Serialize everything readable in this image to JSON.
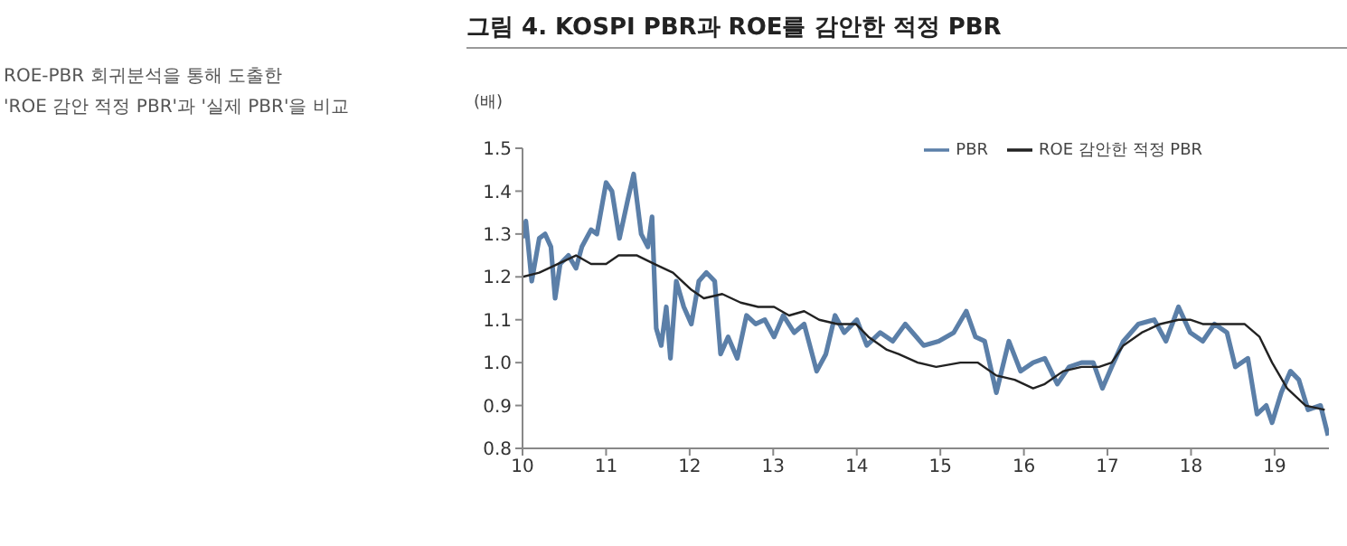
{
  "chart_data": {
    "type": "line",
    "title": "그림 4. KOSPI PBR과 ROE를 감안한 적정 PBR",
    "ylabel": "(배)",
    "annotations": [
      "ROE-PBR 회귀분석을 통해 도출한",
      "'ROE 감안 적정 PBR'과 '실제 PBR'을 비교"
    ],
    "xlim": [
      10,
      19.65
    ],
    "xticks": [
      10,
      11,
      12,
      13,
      14,
      15,
      16,
      17,
      18,
      19
    ],
    "ylim": [
      0.8,
      1.5
    ],
    "yticks": [
      {
        "value": 0.8,
        "label": "0.8"
      },
      {
        "value": 0.9,
        "label": "0.9"
      },
      {
        "value": 1.0,
        "label": "1.0"
      },
      {
        "value": 1.1,
        "label": "1.1"
      },
      {
        "value": 1.2,
        "label": "1.2"
      },
      {
        "value": 1.3,
        "label": "1.3"
      },
      {
        "value": 1.4,
        "label": "1.4"
      },
      {
        "value": 1.5,
        "label": "1.5"
      }
    ],
    "grid": false,
    "legend": "top right",
    "marker": "none",
    "series": [
      {
        "name": "PBR",
        "color": "#5b7fa8",
        "x": [
          10.0,
          10.04,
          10.11,
          10.2,
          10.27,
          10.34,
          10.39,
          10.45,
          10.55,
          10.64,
          10.71,
          10.82,
          10.89,
          11.0,
          11.07,
          11.16,
          11.26,
          11.33,
          11.42,
          11.5,
          11.55,
          11.6,
          11.66,
          11.72,
          11.77,
          11.84,
          11.93,
          12.02,
          12.11,
          12.2,
          12.3,
          12.37,
          12.46,
          12.57,
          12.68,
          12.79,
          12.9,
          13.01,
          13.12,
          13.25,
          13.37,
          13.52,
          13.63,
          13.74,
          13.85,
          14.0,
          14.12,
          14.28,
          14.43,
          14.58,
          14.8,
          14.98,
          15.16,
          15.31,
          15.42,
          15.53,
          15.67,
          15.82,
          15.96,
          16.11,
          16.25,
          16.4,
          16.54,
          16.69,
          16.83,
          16.94,
          17.05,
          17.19,
          17.37,
          17.56,
          17.7,
          17.85,
          17.99,
          18.14,
          18.28,
          18.43,
          18.53,
          18.68,
          18.79,
          18.9,
          18.97,
          19.08,
          19.19,
          19.29,
          19.4,
          19.55,
          19.64
        ],
        "values": [
          1.29,
          1.33,
          1.19,
          1.29,
          1.3,
          1.27,
          1.15,
          1.23,
          1.25,
          1.22,
          1.27,
          1.31,
          1.3,
          1.42,
          1.4,
          1.29,
          1.38,
          1.44,
          1.3,
          1.27,
          1.34,
          1.08,
          1.04,
          1.13,
          1.01,
          1.19,
          1.13,
          1.09,
          1.19,
          1.21,
          1.19,
          1.02,
          1.06,
          1.01,
          1.11,
          1.09,
          1.1,
          1.06,
          1.11,
          1.07,
          1.09,
          0.98,
          1.02,
          1.11,
          1.07,
          1.1,
          1.04,
          1.07,
          1.05,
          1.09,
          1.04,
          1.05,
          1.07,
          1.12,
          1.06,
          1.05,
          0.93,
          1.05,
          0.98,
          1.0,
          1.01,
          0.95,
          0.99,
          1.0,
          1.0,
          0.94,
          0.99,
          1.05,
          1.09,
          1.1,
          1.05,
          1.13,
          1.07,
          1.05,
          1.09,
          1.07,
          0.99,
          1.01,
          0.88,
          0.9,
          0.86,
          0.93,
          0.98,
          0.96,
          0.89,
          0.9,
          0.83
        ]
      },
      {
        "name": "ROE 감안한 적정 PBR",
        "color": "#222222",
        "x": [
          10.0,
          10.2,
          10.42,
          10.64,
          10.82,
          11.0,
          11.15,
          11.37,
          11.58,
          11.8,
          12.02,
          12.17,
          12.39,
          12.61,
          12.82,
          13.01,
          13.19,
          13.37,
          13.55,
          13.77,
          13.99,
          14.14,
          14.36,
          14.5,
          14.73,
          14.95,
          15.24,
          15.45,
          15.67,
          15.89,
          16.11,
          16.25,
          16.47,
          16.69,
          16.9,
          17.05,
          17.19,
          17.41,
          17.63,
          17.85,
          17.99,
          18.14,
          18.35,
          18.64,
          18.82,
          18.97,
          19.15,
          19.37,
          19.6
        ],
        "values": [
          1.2,
          1.21,
          1.23,
          1.25,
          1.23,
          1.23,
          1.25,
          1.25,
          1.23,
          1.21,
          1.17,
          1.15,
          1.16,
          1.14,
          1.13,
          1.13,
          1.11,
          1.12,
          1.1,
          1.09,
          1.09,
          1.06,
          1.03,
          1.02,
          1.0,
          0.99,
          1.0,
          1.0,
          0.97,
          0.96,
          0.94,
          0.95,
          0.98,
          0.99,
          0.99,
          1.0,
          1.04,
          1.07,
          1.09,
          1.1,
          1.1,
          1.09,
          1.09,
          1.09,
          1.06,
          1.0,
          0.94,
          0.9,
          0.89
        ]
      }
    ]
  }
}
